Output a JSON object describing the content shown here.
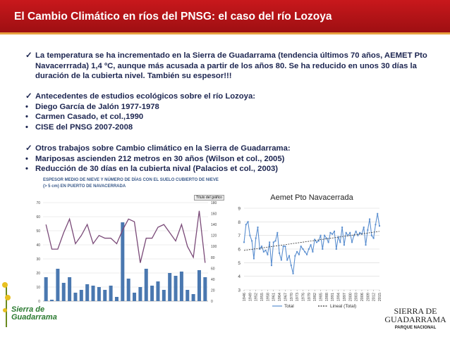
{
  "header": {
    "title": "El Cambio Climático en ríos del PNSG: el caso del río Lozoya"
  },
  "sections": [
    {
      "items": [
        {
          "text": "La temperatura se ha incrementado en la Sierra de Guadarrama (tendencia últimos 70 años, AEMET Pto Navacerrrada) 1,4 ºC, aunque más acusada a partir de los años 80. Se ha reducido en unos 30 días la duración de la cubierta nivel. También su espesor!!!"
        }
      ]
    },
    {
      "items": [
        {
          "text": "Antecedentes de estudios ecológicos sobre el río Lozoya:"
        },
        {
          "text": "Diego García de Jalón 1977-1978"
        },
        {
          "text": "Carmen Casado, et col.,1990"
        },
        {
          "text": "CISE del PNSG 2007-2008"
        }
      ]
    },
    {
      "items": [
        {
          "text": "Otros trabajos sobre Cambio climático en la Sierra de Guadarrama:"
        },
        {
          "text": "Mariposas ascienden 212 metros en 30 años (Wilson et col., 2005)"
        },
        {
          "text": "Reducción de 30 días en la cubierta nival (Palacios et col., 2003)"
        }
      ]
    }
  ],
  "charts": [
    {
      "type": "bar",
      "title": "ESPESOR MEDIO DE NIEVE Y NÚMERO DE DÍAS CON EL SUELO CUBIERTO DE NIEVE (> 5 cm) EN PUERTO DE NAVACERRADA",
      "button": "Título del gráfico",
      "ylim": [
        0,
        70
      ],
      "yticks": [
        0,
        10,
        20,
        30,
        40,
        50,
        60,
        70
      ],
      "y2lim": [
        0,
        180
      ],
      "y2ticks": [
        0,
        20,
        40,
        60,
        80,
        100,
        120,
        140,
        160,
        180
      ],
      "series": [
        {
          "type": "bar",
          "color": "#4a78b0",
          "values": [
            17,
            1,
            23,
            13,
            17,
            6,
            8,
            12,
            11,
            10,
            8,
            11,
            3,
            56,
            16,
            6,
            10,
            23,
            11,
            14,
            8,
            20,
            18,
            21,
            8,
            5,
            22,
            17
          ]
        },
        {
          "type": "line",
          "axis": "y2",
          "color": "#7a4a78",
          "values": [
            140,
            95,
            95,
            125,
            150,
            105,
            120,
            140,
            105,
            120,
            115,
            115,
            105,
            130,
            150,
            145,
            70,
            115,
            115,
            135,
            140,
            125,
            110,
            140,
            100,
            80,
            165,
            70
          ]
        }
      ]
    },
    {
      "type": "line",
      "title": "Aemet Pto Navacerrada",
      "grid": true,
      "x": [
        1946,
        1947,
        1948,
        1949,
        1950,
        1951,
        1952,
        1953,
        1954,
        1955,
        1956,
        1957,
        1958,
        1959,
        1960,
        1961,
        1962,
        1963,
        1964,
        1965,
        1966,
        1967,
        1968,
        1969,
        1970,
        1971,
        1972,
        1973,
        1974,
        1975,
        1976,
        1977,
        1978,
        1979,
        1980,
        1981,
        1982,
        1983,
        1984,
        1985,
        1986,
        1987,
        1988,
        1989,
        1990,
        1991,
        1992,
        1993,
        1994,
        1995,
        1996,
        1997,
        1998,
        1999,
        2000,
        2001,
        2002,
        2003,
        2004,
        2005,
        2006,
        2007,
        2008,
        2009,
        2010,
        2011,
        2012,
        2013,
        2014,
        2015
      ],
      "xlim": [
        1946,
        2015
      ],
      "xticks": [
        1946,
        1949,
        1952,
        1955,
        1958,
        1961,
        1964,
        1967,
        1970,
        1973,
        1976,
        1979,
        1982,
        1985,
        1988,
        1991,
        1994,
        1997,
        2000,
        2003,
        2006,
        2009,
        2012,
        2015
      ],
      "ylim": [
        3,
        9
      ],
      "yticks": [
        3,
        4,
        5,
        6,
        7,
        8,
        9
      ],
      "series": [
        {
          "name": "Total",
          "color": "#5b8fd0",
          "values": [
            6.5,
            7.8,
            8.0,
            7.0,
            6.6,
            5.3,
            6.8,
            7.6,
            6.0,
            6.2,
            5.8,
            5.9,
            5.6,
            6.5,
            4.8,
            6.5,
            6.6,
            7.2,
            5.7,
            5.2,
            6.2,
            6.2,
            5.2,
            5.5,
            4.8,
            4.2,
            5.5,
            5.8,
            5.6,
            6.2,
            6.0,
            5.8,
            5.6,
            6.0,
            6.3,
            5.8,
            6.7,
            6.5,
            6.6,
            7.0,
            6.0,
            7.0,
            6.8,
            6.5,
            7.2,
            7.1,
            7.3,
            6.0,
            6.9,
            6.5,
            7.6,
            6.3,
            7.2,
            7.0,
            7.2,
            6.5,
            7.0,
            7.3,
            7.0,
            7.2,
            7.1,
            7.6,
            6.3,
            7.4,
            8.2,
            7.0,
            6.8,
            7.8,
            8.6,
            7.7
          ]
        },
        {
          "name": "Lineal (Total)",
          "color": "#333333",
          "x": [
            1946,
            2015
          ],
          "values": [
            5.9,
            7.3
          ]
        }
      ]
    }
  ],
  "logos": {
    "left": [
      "Sierra de",
      "Guadarrama"
    ],
    "right": [
      "SIERRA DE",
      "GUADARRAMA",
      "PARQUE NACIONAL"
    ]
  }
}
